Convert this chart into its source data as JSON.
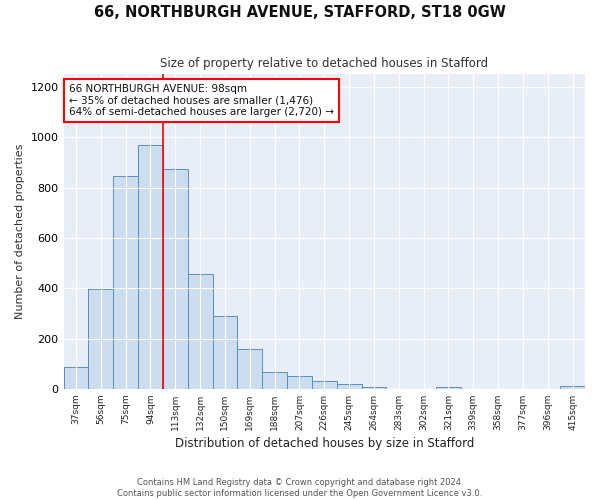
{
  "title": "66, NORTHBURGH AVENUE, STAFFORD, ST18 0GW",
  "subtitle": "Size of property relative to detached houses in Stafford",
  "xlabel": "Distribution of detached houses by size in Stafford",
  "ylabel": "Number of detached properties",
  "categories": [
    "37sqm",
    "56sqm",
    "75sqm",
    "94sqm",
    "113sqm",
    "132sqm",
    "150sqm",
    "169sqm",
    "188sqm",
    "207sqm",
    "226sqm",
    "245sqm",
    "264sqm",
    "283sqm",
    "302sqm",
    "321sqm",
    "339sqm",
    "358sqm",
    "377sqm",
    "396sqm",
    "415sqm"
  ],
  "values": [
    85,
    395,
    845,
    970,
    875,
    455,
    290,
    160,
    65,
    50,
    30,
    20,
    8,
    0,
    0,
    8,
    0,
    0,
    0,
    0,
    12
  ],
  "bar_color": "#ccddf0",
  "bar_edge_color": "#5a8fc2",
  "vline_x": 3.5,
  "vline_color": "red",
  "annotation_text": "66 NORTHBURGH AVENUE: 98sqm\n← 35% of detached houses are smaller (1,476)\n64% of semi-detached houses are larger (2,720) →",
  "annotation_box_color": "white",
  "annotation_box_edgecolor": "red",
  "ylim": [
    0,
    1250
  ],
  "yticks": [
    0,
    200,
    400,
    600,
    800,
    1000,
    1200
  ],
  "background_color": "#e8eef8",
  "grid_color": "#ffffff",
  "footer1": "Contains HM Land Registry data © Crown copyright and database right 2024.",
  "footer2": "Contains public sector information licensed under the Open Government Licence v3.0."
}
